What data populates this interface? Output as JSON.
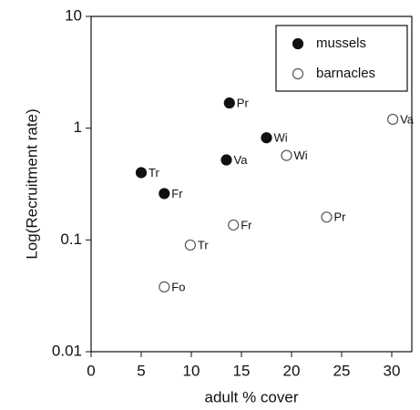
{
  "chart_data": {
    "type": "scatter",
    "xlabel": "adult % cover",
    "ylabel": "Log(Recruitment rate)",
    "xlim": [
      0,
      32
    ],
    "xticks": [
      0,
      5,
      10,
      15,
      20,
      25,
      30
    ],
    "ylim": [
      0.01,
      10
    ],
    "yticks": [
      0.01,
      0.1,
      1,
      10
    ],
    "log_y": true,
    "legend": "upper right",
    "series": [
      {
        "name": "mussels",
        "color": "#111111",
        "filled": true,
        "x": [
          13.8,
          17.5,
          13.5,
          5.0,
          7.3
        ],
        "values": [
          1.68,
          0.82,
          0.52,
          0.4,
          0.26
        ],
        "labels": [
          "Pr",
          "Wi",
          "Va",
          "Tr",
          "Fr"
        ]
      },
      {
        "name": "barnacles",
        "color": "#555555",
        "filled": false,
        "x": [
          30.1,
          19.5,
          23.5,
          14.2,
          9.9,
          7.3
        ],
        "values": [
          1.2,
          0.57,
          0.16,
          0.136,
          0.09,
          0.038
        ],
        "labels": [
          "Va",
          "Wi",
          "Pr",
          "Fr",
          "Tr",
          "Fo"
        ]
      }
    ]
  }
}
